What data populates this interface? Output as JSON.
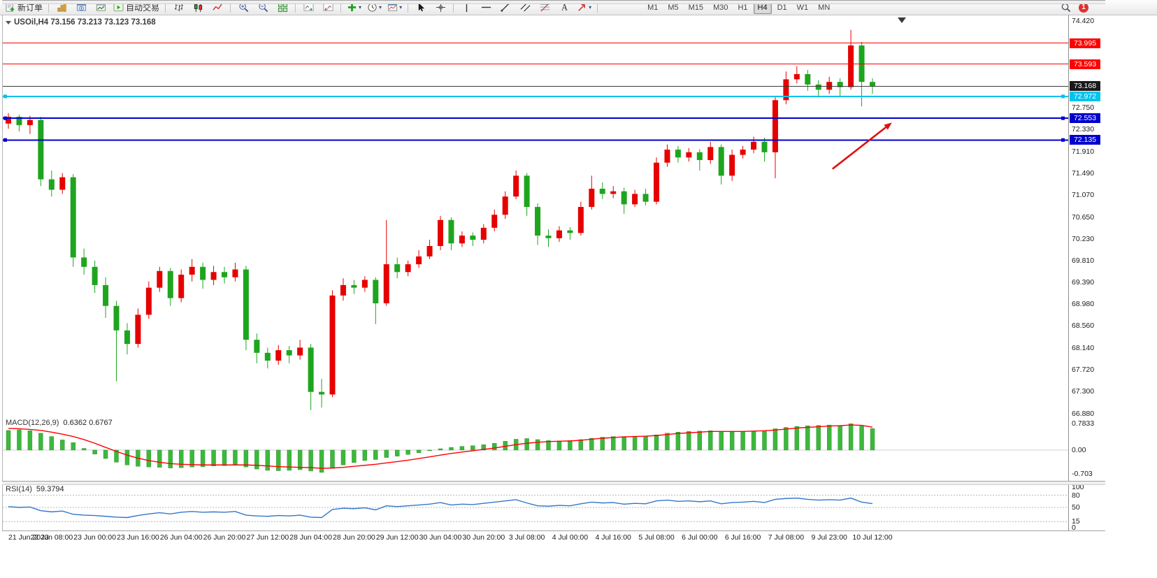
{
  "toolbar": {
    "groups": [
      [
        {
          "kind": "labelbtn",
          "name": "new-order",
          "label": "新订单"
        }
      ],
      [
        {
          "kind": "icon",
          "name": "market-watch"
        },
        {
          "kind": "icon",
          "name": "navigator"
        },
        {
          "kind": "icon",
          "name": "terminal"
        },
        {
          "kind": "labelbtn",
          "name": "autotrading",
          "label": "自动交易"
        }
      ],
      [
        {
          "kind": "icon",
          "name": "bar-chart"
        },
        {
          "kind": "icon",
          "name": "candlestick-chart"
        },
        {
          "kind": "icon",
          "name": "line-chart"
        }
      ],
      [
        {
          "kind": "icon",
          "name": "zoom-in"
        },
        {
          "kind": "icon",
          "name": "zoom-out"
        },
        {
          "kind": "icon",
          "name": "tile-windows"
        }
      ],
      [
        {
          "kind": "icon",
          "name": "auto-scroll"
        },
        {
          "kind": "icon",
          "name": "chart-shift"
        }
      ],
      [
        {
          "kind": "dropdown",
          "name": "indicators-add"
        },
        {
          "kind": "dropdown",
          "name": "periods"
        },
        {
          "kind": "dropdown",
          "name": "templates"
        }
      ],
      [
        {
          "kind": "icon",
          "name": "cursor"
        },
        {
          "kind": "icon",
          "name": "crosshair"
        }
      ],
      [
        {
          "kind": "icon",
          "name": "vertical-line"
        },
        {
          "kind": "icon",
          "name": "horizontal-line"
        },
        {
          "kind": "icon",
          "name": "trendline"
        },
        {
          "kind": "icon",
          "name": "equidistant-channel"
        },
        {
          "kind": "icon",
          "name": "fibonacci"
        },
        {
          "kind": "icon",
          "name": "text-label"
        },
        {
          "kind": "dropdown",
          "name": "arrows"
        }
      ]
    ],
    "timeframes": [
      "M1",
      "M5",
      "M15",
      "M30",
      "H1",
      "H4",
      "D1",
      "W1",
      "MN"
    ],
    "active_timeframe": "H4",
    "notification_count": "1"
  },
  "chart": {
    "title": "USOil,H4 73.156 73.213 73.123 73.168"
  },
  "chart_data": {
    "type": "candlestick",
    "symbol": "USOil",
    "timeframe": "H4",
    "ohlc_current": {
      "open": 73.156,
      "high": 73.213,
      "low": 73.123,
      "close": 73.168
    },
    "colors": {
      "up": "#e60000",
      "down": "#1ea51e",
      "macd_histogram": "#3cb83c",
      "macd_signal": "#ff0000",
      "rsi_line": "#3377cc",
      "arrow": "#e01010"
    },
    "price_axis": {
      "min": 66.88,
      "max": 74.42,
      "ticks": [
        "74.420",
        "72.750",
        "72.330",
        "71.910",
        "71.490",
        "71.070",
        "70.650",
        "70.230",
        "69.810",
        "69.390",
        "68.980",
        "68.560",
        "68.140",
        "67.720",
        "67.300",
        "66.880"
      ]
    },
    "hlines": [
      {
        "price": 73.995,
        "label": "73.995",
        "color": "#ff0000",
        "width": 1,
        "handles": false,
        "kind": "resistance"
      },
      {
        "price": 73.593,
        "label": "73.593",
        "color": "#ff0000",
        "width": 1,
        "handles": false,
        "kind": "resistance"
      },
      {
        "price": 73.168,
        "label": "73.168",
        "color": "#3a3a3a",
        "width": 1,
        "handles": false,
        "kind": "current-price"
      },
      {
        "price": 72.972,
        "label": "72.972",
        "color": "#00c3ef",
        "width": 2,
        "handles": true,
        "kind": "support"
      },
      {
        "price": 72.553,
        "label": "72.553",
        "color": "#0000cc",
        "width": 2,
        "handles": true,
        "kind": "support"
      },
      {
        "price": 72.135,
        "label": "72.135",
        "color": "#0000cc",
        "width": 2,
        "handles": true,
        "kind": "support"
      }
    ],
    "arrow": {
      "from": {
        "i": 76.3,
        "price": 71.58
      },
      "to": {
        "i": 81.8,
        "price": 72.47
      }
    },
    "time_labels": [
      "21 Jun 2023",
      "22 Jun 08:00",
      "23 Jun 00:00",
      "23 Jun 16:00",
      "26 Jun 04:00",
      "26 Jun 20:00",
      "27 Jun 12:00",
      "28 Jun 04:00",
      "28 Jun 20:00",
      "29 Jun 12:00",
      "30 Jun 04:00",
      "30 Jun 20:00",
      "3 Jul 08:00",
      "4 Jul 00:00",
      "4 Jul 16:00",
      "5 Jul 08:00",
      "6 Jul 00:00",
      "6 Jul 16:00",
      "7 Jul 08:00",
      "9 Jul 23:00",
      "10 Jul 12:00"
    ],
    "candles": [
      [
        72.45,
        72.65,
        72.35,
        72.58
      ],
      [
        72.58,
        72.62,
        72.3,
        72.42
      ],
      [
        72.42,
        72.6,
        72.25,
        72.52
      ],
      [
        72.52,
        72.58,
        71.25,
        71.38
      ],
      [
        71.38,
        71.55,
        71.05,
        71.18
      ],
      [
        71.18,
        71.5,
        71.1,
        71.42
      ],
      [
        71.42,
        71.48,
        69.7,
        69.88
      ],
      [
        69.88,
        70.05,
        69.55,
        69.7
      ],
      [
        69.7,
        69.82,
        69.2,
        69.35
      ],
      [
        69.35,
        69.5,
        68.72,
        68.95
      ],
      [
        68.95,
        69.05,
        67.5,
        68.48
      ],
      [
        68.48,
        68.62,
        68.02,
        68.22
      ],
      [
        68.22,
        68.9,
        68.15,
        68.78
      ],
      [
        68.78,
        69.42,
        68.7,
        69.3
      ],
      [
        69.3,
        69.7,
        69.22,
        69.62
      ],
      [
        69.62,
        69.68,
        68.95,
        69.1
      ],
      [
        69.1,
        69.65,
        69.02,
        69.55
      ],
      [
        69.55,
        69.85,
        69.42,
        69.7
      ],
      [
        69.7,
        69.78,
        69.28,
        69.45
      ],
      [
        69.45,
        69.72,
        69.35,
        69.6
      ],
      [
        69.6,
        69.7,
        69.38,
        69.5
      ],
      [
        69.5,
        69.78,
        69.42,
        69.65
      ],
      [
        69.65,
        69.72,
        68.1,
        68.3
      ],
      [
        68.3,
        68.42,
        67.85,
        68.05
      ],
      [
        68.05,
        68.15,
        67.75,
        67.9
      ],
      [
        67.9,
        68.2,
        67.82,
        68.1
      ],
      [
        68.1,
        68.18,
        67.85,
        68.0
      ],
      [
        68.0,
        68.3,
        67.92,
        68.15
      ],
      [
        68.15,
        68.22,
        66.95,
        67.3
      ],
      [
        67.3,
        67.55,
        67.0,
        67.25
      ],
      [
        67.25,
        69.25,
        67.2,
        69.15
      ],
      [
        69.15,
        69.48,
        69.05,
        69.35
      ],
      [
        69.35,
        69.45,
        69.18,
        69.3
      ],
      [
        69.3,
        69.52,
        69.22,
        69.45
      ],
      [
        69.45,
        69.5,
        68.6,
        69.0
      ],
      [
        69.0,
        70.6,
        68.95,
        69.75
      ],
      [
        69.75,
        69.88,
        69.48,
        69.6
      ],
      [
        69.6,
        69.82,
        69.52,
        69.75
      ],
      [
        69.75,
        70.02,
        69.68,
        69.9
      ],
      [
        69.9,
        70.22,
        69.85,
        70.1
      ],
      [
        70.1,
        70.68,
        70.02,
        70.6
      ],
      [
        70.6,
        70.65,
        70.02,
        70.15
      ],
      [
        70.15,
        70.38,
        70.08,
        70.3
      ],
      [
        70.3,
        70.36,
        70.1,
        70.22
      ],
      [
        70.22,
        70.52,
        70.15,
        70.45
      ],
      [
        70.45,
        70.8,
        70.38,
        70.7
      ],
      [
        70.7,
        71.15,
        70.62,
        71.05
      ],
      [
        71.05,
        71.55,
        71.0,
        71.45
      ],
      [
        71.45,
        71.5,
        70.68,
        70.85
      ],
      [
        70.85,
        70.92,
        70.12,
        70.3
      ],
      [
        70.3,
        70.42,
        70.08,
        70.25
      ],
      [
        70.25,
        70.48,
        70.18,
        70.4
      ],
      [
        70.4,
        70.46,
        70.22,
        70.35
      ],
      [
        70.35,
        70.95,
        70.3,
        70.85
      ],
      [
        70.85,
        71.45,
        70.8,
        71.2
      ],
      [
        71.2,
        71.32,
        71.0,
        71.1
      ],
      [
        71.1,
        71.25,
        71.02,
        71.15
      ],
      [
        71.15,
        71.22,
        70.72,
        70.9
      ],
      [
        70.9,
        71.18,
        70.85,
        71.1
      ],
      [
        71.1,
        71.2,
        70.88,
        70.95
      ],
      [
        70.95,
        71.8,
        70.9,
        71.7
      ],
      [
        71.7,
        72.05,
        71.62,
        71.95
      ],
      [
        71.95,
        72.02,
        71.7,
        71.8
      ],
      [
        71.8,
        71.98,
        71.72,
        71.9
      ],
      [
        71.9,
        71.96,
        71.55,
        71.75
      ],
      [
        71.75,
        72.1,
        71.68,
        72.0
      ],
      [
        72.0,
        72.05,
        71.28,
        71.45
      ],
      [
        71.45,
        71.95,
        71.35,
        71.85
      ],
      [
        71.85,
        72.02,
        71.78,
        71.95
      ],
      [
        71.95,
        72.2,
        71.88,
        72.1
      ],
      [
        72.1,
        72.18,
        71.72,
        71.9
      ],
      [
        71.9,
        72.98,
        71.4,
        72.9
      ],
      [
        72.9,
        73.45,
        72.82,
        73.3
      ],
      [
        73.3,
        73.55,
        73.22,
        73.4
      ],
      [
        73.4,
        73.48,
        73.08,
        73.2
      ],
      [
        73.2,
        73.28,
        72.95,
        73.1
      ],
      [
        73.1,
        73.35,
        73.02,
        73.25
      ],
      [
        73.25,
        73.32,
        72.98,
        73.15
      ],
      [
        73.15,
        74.25,
        73.1,
        73.95
      ],
      [
        73.95,
        74.02,
        72.78,
        73.25
      ],
      [
        73.25,
        73.32,
        73.02,
        73.168
      ]
    ],
    "macd": {
      "label": "MACD(12,26,9)",
      "values_text": "0.6362 0.6767",
      "main_value": 0.6362,
      "signal_value": 0.6767,
      "ticks": [
        "0.7833",
        "0.00",
        "-0.703"
      ],
      "ylim": [
        -0.703,
        0.7833
      ],
      "histogram": [
        0.58,
        0.6,
        0.57,
        0.5,
        0.4,
        0.3,
        0.22,
        0.05,
        -0.12,
        -0.25,
        -0.36,
        -0.44,
        -0.48,
        -0.5,
        -0.51,
        -0.53,
        -0.52,
        -0.5,
        -0.49,
        -0.47,
        -0.46,
        -0.45,
        -0.5,
        -0.56,
        -0.6,
        -0.61,
        -0.6,
        -0.58,
        -0.62,
        -0.66,
        -0.54,
        -0.44,
        -0.37,
        -0.31,
        -0.28,
        -0.22,
        -0.18,
        -0.13,
        -0.08,
        -0.02,
        0.04,
        0.08,
        0.11,
        0.13,
        0.16,
        0.2,
        0.26,
        0.32,
        0.34,
        0.31,
        0.28,
        0.27,
        0.28,
        0.31,
        0.35,
        0.38,
        0.4,
        0.4,
        0.41,
        0.41,
        0.45,
        0.5,
        0.53,
        0.55,
        0.56,
        0.57,
        0.54,
        0.53,
        0.54,
        0.56,
        0.57,
        0.63,
        0.67,
        0.7,
        0.72,
        0.73,
        0.74,
        0.73,
        0.78,
        0.71,
        0.636
      ],
      "signal": [
        0.64,
        0.63,
        0.61,
        0.58,
        0.53,
        0.47,
        0.4,
        0.31,
        0.2,
        0.08,
        -0.04,
        -0.15,
        -0.24,
        -0.31,
        -0.36,
        -0.4,
        -0.42,
        -0.43,
        -0.44,
        -0.44,
        -0.44,
        -0.44,
        -0.44,
        -0.45,
        -0.47,
        -0.49,
        -0.5,
        -0.51,
        -0.52,
        -0.54,
        -0.53,
        -0.51,
        -0.48,
        -0.45,
        -0.42,
        -0.38,
        -0.34,
        -0.3,
        -0.25,
        -0.2,
        -0.15,
        -0.1,
        -0.06,
        -0.02,
        0.02,
        0.06,
        0.11,
        0.16,
        0.2,
        0.23,
        0.25,
        0.26,
        0.27,
        0.29,
        0.32,
        0.35,
        0.37,
        0.39,
        0.4,
        0.41,
        0.43,
        0.46,
        0.49,
        0.51,
        0.53,
        0.55,
        0.55,
        0.55,
        0.55,
        0.56,
        0.57,
        0.59,
        0.62,
        0.65,
        0.67,
        0.69,
        0.71,
        0.72,
        0.74,
        0.73,
        0.6767
      ]
    },
    "rsi": {
      "label": "RSI(14)",
      "value_text": "59.3794",
      "value": 59.3794,
      "ticks": [
        "100",
        "80",
        "50",
        "15",
        "0"
      ],
      "levels": [
        80,
        50,
        15
      ],
      "ylim": [
        0,
        100
      ],
      "values": [
        52,
        50,
        51,
        42,
        39,
        41,
        33,
        31,
        30,
        28,
        26,
        25,
        30,
        34,
        37,
        34,
        38,
        40,
        38,
        39,
        38,
        40,
        31,
        29,
        28,
        30,
        29,
        31,
        26,
        25,
        45,
        48,
        47,
        49,
        44,
        54,
        52,
        54,
        56,
        58,
        62,
        56,
        58,
        57,
        60,
        63,
        66,
        69,
        61,
        54,
        53,
        55,
        54,
        59,
        63,
        61,
        62,
        58,
        60,
        59,
        66,
        68,
        65,
        66,
        64,
        66,
        59,
        62,
        63,
        65,
        62,
        70,
        72,
        73,
        70,
        68,
        69,
        68,
        73,
        63,
        59.38
      ]
    }
  }
}
